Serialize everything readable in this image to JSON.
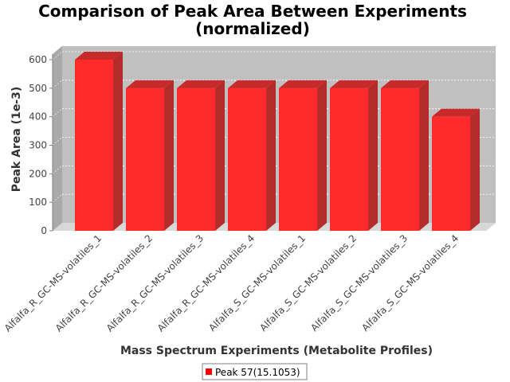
{
  "chart_data": {
    "type": "bar",
    "title_line1": "Comparison of Peak Area Between Experiments",
    "title_line2": "(normalized)",
    "xlabel": "Mass Spectrum Experiments (Metabolite Profiles)",
    "ylabel": "Peak Area (1e-3)",
    "ylim": [
      0,
      600
    ],
    "yticks": [
      0,
      100,
      200,
      300,
      400,
      500,
      600
    ],
    "categories": [
      "Alfalfa_R_GC-MS-volatiles_1",
      "Alfalfa_R_GC-MS-volatiles_2",
      "Alfalfa_R_GC-MS-volatiles_3",
      "Alfalfa_R_GC-MS-volatiles_4",
      "Alfalfa_S_GC-MS-volatiles_1",
      "Alfalfa_S_GC-MS-volatiles_2",
      "Alfalfa_S_GC-MS-volatiles_3",
      "Alfalfa_S_GC-MS-volatiles_4"
    ],
    "series": [
      {
        "name": "Peak 57(15.1053)",
        "color": "#ff2a2a",
        "values": [
          600,
          500,
          500,
          500,
          500,
          500,
          500,
          400
        ]
      }
    ],
    "grid": true,
    "legend": "bottom-center",
    "style": "3d-bar"
  }
}
